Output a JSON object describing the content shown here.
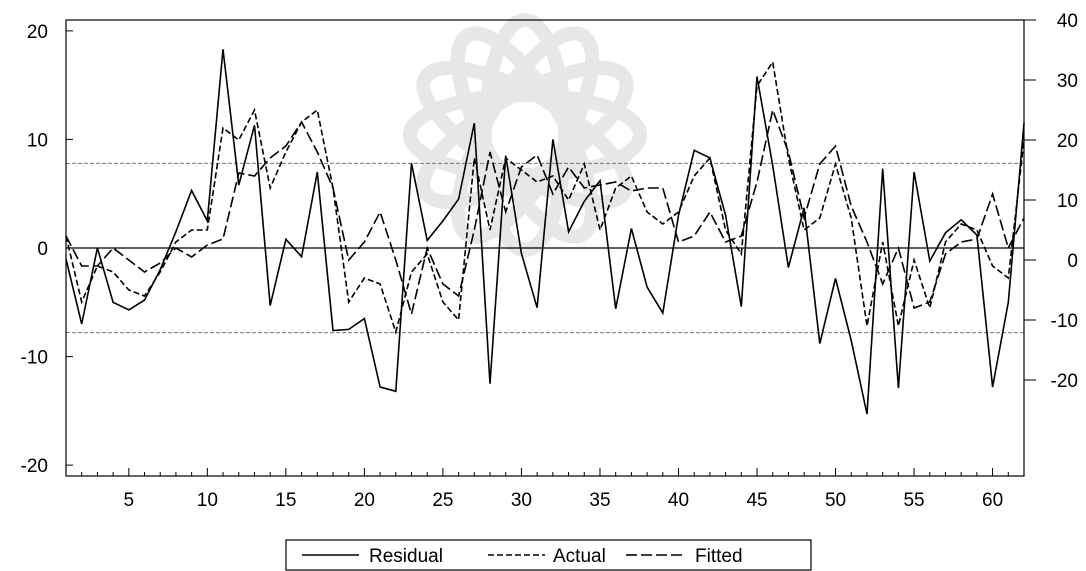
{
  "chart_data": {
    "type": "line",
    "title": "",
    "xlabel": "",
    "ylabel": "",
    "grid": false,
    "legend_position": "bottom",
    "x": [
      1,
      2,
      3,
      4,
      5,
      6,
      7,
      8,
      9,
      10,
      11,
      12,
      13,
      14,
      15,
      16,
      17,
      18,
      19,
      20,
      21,
      22,
      23,
      24,
      25,
      26,
      27,
      28,
      29,
      30,
      31,
      32,
      33,
      34,
      35,
      36,
      37,
      38,
      39,
      40,
      41,
      42,
      43,
      44,
      45,
      46,
      47,
      48,
      49,
      50,
      51,
      52,
      53,
      54,
      55,
      56,
      57,
      58,
      59,
      60,
      61,
      62
    ],
    "x_ticks": [
      5,
      10,
      15,
      20,
      25,
      30,
      35,
      40,
      45,
      50,
      55,
      60
    ],
    "x_tick_labels": [
      "5",
      "10",
      "15",
      "20",
      "25",
      "30",
      "35",
      "40",
      "45",
      "50",
      "55",
      "60"
    ],
    "left_axis": {
      "ylim": [
        -21,
        21
      ],
      "ticks": [
        -20,
        -10,
        0,
        10,
        20
      ],
      "tick_labels": [
        "-20",
        "-10",
        "0",
        "10",
        "20"
      ],
      "reference_lines": [
        0,
        7.8,
        -7.8
      ]
    },
    "right_axis": {
      "ylim": [
        -36,
        40
      ],
      "ticks": [
        -20,
        -10,
        0,
        10,
        20,
        30,
        40
      ],
      "tick_labels": [
        "-20",
        "-10",
        "0",
        "10",
        "20",
        "30",
        "40"
      ]
    },
    "series": [
      {
        "name": "Residual",
        "axis": "left",
        "line_style": "solid",
        "values": [
          -1,
          -7,
          0,
          -5,
          -5.7,
          -4.8,
          -2,
          1.5,
          5.3,
          2.5,
          18.3,
          5.8,
          11.3,
          -5.3,
          0.8,
          -0.8,
          7,
          -7.6,
          -7.5,
          -6.5,
          -12.8,
          -13.2,
          7.8,
          0.7,
          2.5,
          4.5,
          11.5,
          -12.5,
          8.5,
          -0.5,
          -5.5,
          10,
          1.5,
          4.3,
          6.2,
          -5.6,
          1.8,
          -3.6,
          -6,
          3,
          9,
          8.3,
          3,
          -5.4,
          15.8,
          7.6,
          -1.8,
          3.7,
          -8.8,
          -2.8,
          -8.5,
          -15.3,
          7.3,
          -12.9,
          7,
          -1.2,
          1.4,
          2.6,
          1.2,
          -12.8,
          -5,
          11.5
        ]
      },
      {
        "name": "Actual",
        "axis": "right",
        "line_style": "dash",
        "values": [
          4,
          -7,
          -1,
          -2,
          -5,
          -6,
          -2,
          3,
          5,
          5,
          22,
          20,
          25,
          12,
          18,
          23,
          25,
          12,
          -7,
          -3,
          -4,
          -12,
          -2,
          1,
          -7,
          -10,
          17,
          5,
          17,
          15,
          13,
          14,
          10,
          16,
          5,
          12,
          14,
          8,
          6,
          8,
          14,
          17,
          5,
          1,
          29,
          33,
          17,
          5,
          7,
          16,
          7,
          -11,
          3,
          -11,
          0,
          -8,
          3,
          6,
          5,
          -1,
          -3,
          20
        ]
      },
      {
        "name": "Fitted",
        "axis": "right",
        "line_style": "long-dash",
        "values": [
          4,
          -1,
          -1,
          2,
          0,
          -2,
          -0.5,
          2,
          0.5,
          2.5,
          3.5,
          14.5,
          14,
          17,
          19,
          23,
          18,
          12,
          0,
          3,
          8,
          0,
          -9,
          2,
          -4,
          -6,
          5,
          18,
          8,
          15.5,
          17.5,
          11,
          15.5,
          12,
          12.5,
          13,
          11.5,
          12,
          12,
          3,
          4,
          8,
          3,
          4,
          13,
          25,
          18,
          7,
          16,
          19,
          9,
          3,
          -4,
          2,
          -8,
          -7,
          1,
          3,
          3.5,
          11,
          2,
          7
        ]
      }
    ]
  }
}
